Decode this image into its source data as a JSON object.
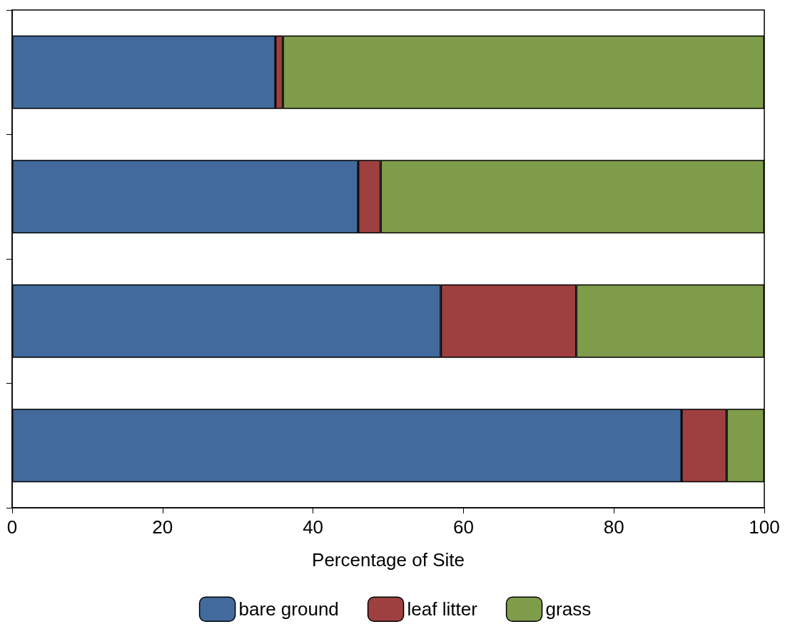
{
  "chart_data": {
    "type": "bar",
    "orientation": "horizontal",
    "stacked": true,
    "xlabel": "Percentage of Site",
    "categories": [
      null,
      null,
      null,
      null
    ],
    "series": [
      {
        "name": "bare ground",
        "color": "#426a9c",
        "values": [
          35,
          46,
          57,
          89
        ]
      },
      {
        "name": "leaf litter",
        "color": "#9e4040",
        "values": [
          1,
          3,
          18,
          6
        ]
      },
      {
        "name": "grass",
        "color": "#7f9c4a",
        "values": [
          64,
          51,
          25,
          5
        ]
      }
    ],
    "xlim": [
      0,
      100
    ],
    "xticks": [
      0,
      20,
      40,
      60,
      80,
      100
    ],
    "grid": false,
    "legend": "bottom"
  }
}
